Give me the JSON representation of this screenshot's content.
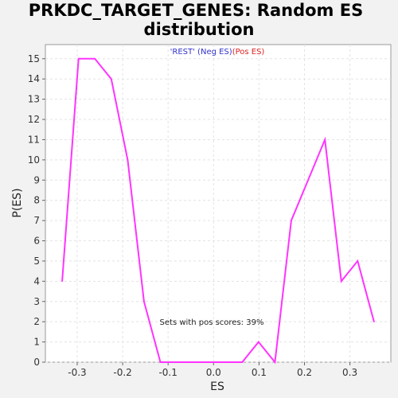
{
  "chart_data": {
    "type": "line",
    "title_line1": "PRKDC_TARGET_GENES: Random ES",
    "title_line2": "distribution",
    "xlabel": "ES",
    "ylabel": "P(ES)",
    "xlim": [
      -0.37,
      0.39
    ],
    "ylim": [
      0,
      15.7
    ],
    "xticks": [
      -0.3,
      -0.2,
      -0.1,
      0.0,
      0.1,
      0.2,
      0.3
    ],
    "xtick_labels": [
      "-0.3",
      "-0.2",
      "-0.1",
      "0.0",
      "0.1",
      "0.2",
      "0.3"
    ],
    "yticks": [
      0,
      1,
      2,
      3,
      4,
      5,
      6,
      7,
      8,
      9,
      10,
      11,
      12,
      13,
      14,
      15
    ],
    "ytick_labels": [
      "0",
      "1",
      "2",
      "3",
      "4",
      "5",
      "6",
      "7",
      "8",
      "9",
      "10",
      "11",
      "12",
      "13",
      "14",
      "15"
    ],
    "grid": true,
    "legend": {
      "placement": "top-center",
      "neg_label": "'REST' (Neg ES)",
      "pos_label": "(Pos ES)",
      "neg_color": "#3333cc",
      "pos_color": "#dd2222"
    },
    "annotation": "Sets with pos scores: 39%",
    "series": [
      {
        "color": "#ff33ff",
        "x": [
          -0.333,
          -0.297,
          -0.261,
          -0.225,
          -0.189,
          -0.153,
          -0.117,
          -0.081,
          -0.045,
          -0.009,
          0.027,
          0.063,
          0.099,
          0.135,
          0.171,
          0.245,
          0.281,
          0.317,
          0.353
        ],
        "y": [
          4,
          15,
          15,
          14,
          10,
          3,
          0,
          0,
          0,
          0,
          0,
          0,
          1,
          0,
          7,
          11,
          4,
          5,
          2
        ]
      }
    ]
  }
}
